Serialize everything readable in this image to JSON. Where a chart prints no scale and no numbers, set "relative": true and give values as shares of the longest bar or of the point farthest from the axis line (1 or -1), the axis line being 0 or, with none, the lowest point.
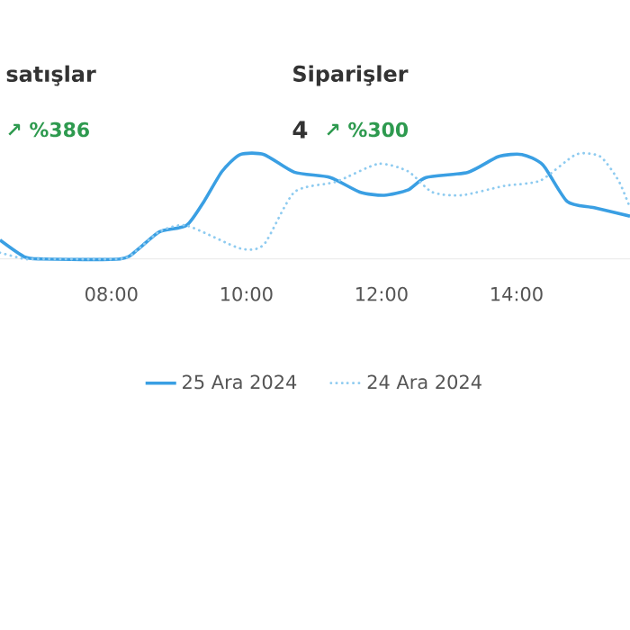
{
  "chart_data": {
    "type": "line",
    "relative": true,
    "xlim": [
      6.35,
      15.68
    ],
    "xticks": [
      {
        "value": 8,
        "label": "08:00"
      },
      {
        "value": 10,
        "label": "10:00"
      },
      {
        "value": 12,
        "label": "12:00"
      },
      {
        "value": 14,
        "label": "14:00"
      }
    ],
    "legend": "bottom",
    "annotations": [
      "satışlar",
      "↗ %386",
      "Siparişler",
      "4",
      "↗ %300"
    ],
    "series": [
      {
        "name": "25 Ara 2024",
        "color": "#3a9fe3",
        "line_style": "solid",
        "x": [
          6.35,
          6.71,
          6.97,
          8.13,
          8.39,
          8.71,
          9.11,
          9.37,
          9.64,
          9.91,
          10.26,
          10.71,
          11.24,
          11.68,
          12.04,
          12.39,
          12.66,
          13.28,
          13.73,
          14.08,
          14.39,
          14.75,
          15.15,
          15.68
        ],
        "values": [
          0.18,
          0.02,
          0,
          0,
          0.09,
          0.26,
          0.32,
          0.55,
          0.84,
          1,
          1,
          0.83,
          0.78,
          0.64,
          0.61,
          0.66,
          0.78,
          0.83,
          0.98,
          1,
          0.9,
          0.55,
          0.49,
          0.41
        ]
      },
      {
        "name": "24 Ara 2024",
        "color": "#8ecbf0",
        "line_style": "dotted",
        "x": [
          6.35,
          6.71,
          6.97,
          8.13,
          8.39,
          8.71,
          9.11,
          9.91,
          10.26,
          10.71,
          11.33,
          11.95,
          12.39,
          12.75,
          13.19,
          13.82,
          14.35,
          14.88,
          15.24,
          15.51,
          15.68
        ],
        "values": [
          0.06,
          0,
          0,
          0,
          0.09,
          0.26,
          0.32,
          0.1,
          0.14,
          0.64,
          0.74,
          0.91,
          0.84,
          0.64,
          0.61,
          0.7,
          0.75,
          1,
          0.98,
          0.75,
          0.49
        ]
      }
    ]
  }
}
